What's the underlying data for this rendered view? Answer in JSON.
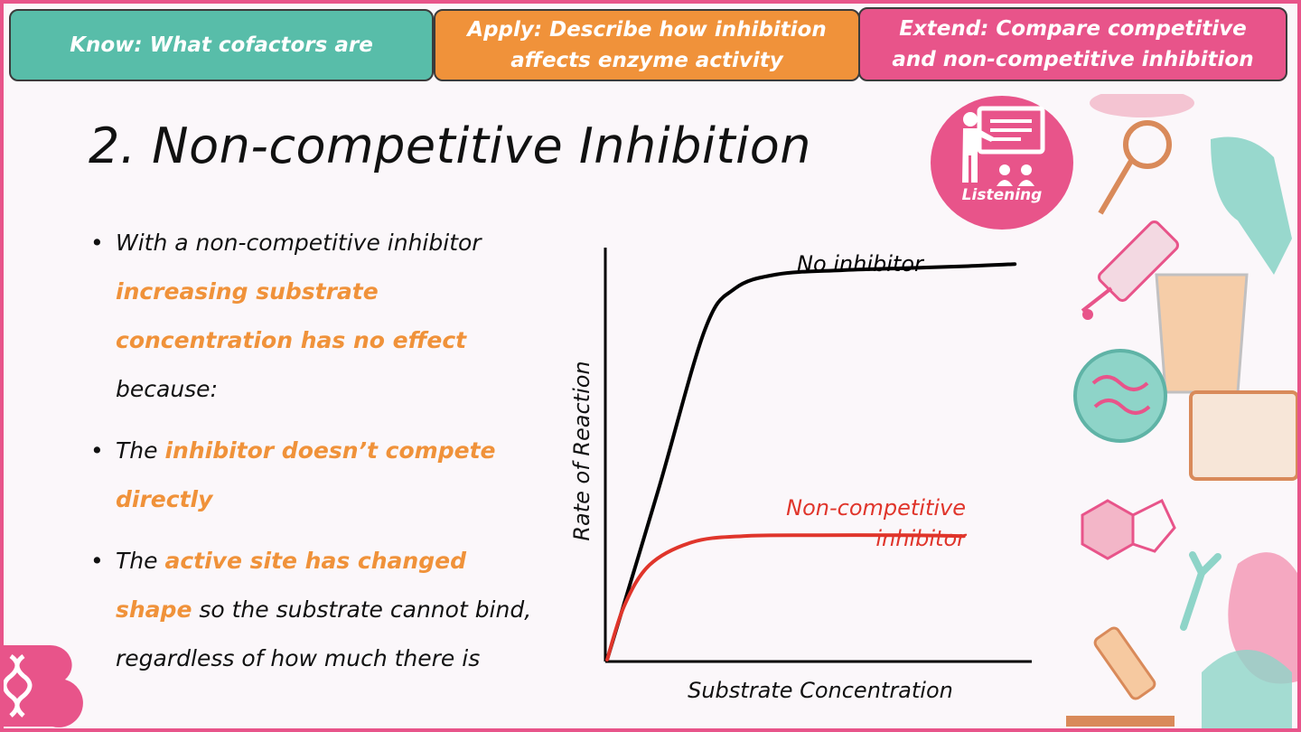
{
  "objectives": {
    "know": "Know: What cofactors are",
    "apply_line1": "Apply: Describe how inhibition",
    "apply_line2": "affects enzyme activity",
    "extend_line1": "Extend: Compare competitive",
    "extend_line2": "and non-competitive inhibition"
  },
  "title": "2. Non-competitive Inhibition",
  "listening_label": "Listening",
  "bullets": {
    "b1_text1": "With a non-competitive inhibitor ",
    "b1_hl": "increasing substrate concentration has no effect",
    "b1_text2": " because:",
    "b2_text1": "The ",
    "b2_hl": "inhibitor doesn’t compete directly",
    "b3_text1": "The ",
    "b3_hl": "active site has changed shape",
    "b3_text2": " so the substrate cannot bind, regardless of how much there is"
  },
  "colors": {
    "accent_pink": "#e8548a",
    "accent_orange": "#f0923a",
    "accent_teal": "#58bda9",
    "inhibitor_curve": "#e0352b",
    "no_inhibitor_curve": "#000000"
  },
  "chart_data": {
    "type": "line",
    "xlabel": "Substrate Concentration",
    "ylabel": "Rate of Reaction",
    "xlim": [
      0,
      10
    ],
    "ylim": [
      0,
      10
    ],
    "series": [
      {
        "name": "No inhibitor",
        "color": "#000000",
        "x": [
          0,
          1.2,
          2.3,
          3.0,
          4.0,
          5.5,
          7.0,
          8.5,
          9.6
        ],
        "y": [
          0,
          4.1,
          8.0,
          9.0,
          9.35,
          9.45,
          9.5,
          9.55,
          9.6
        ]
      },
      {
        "name": "Non-competitive\ninhibitor",
        "color": "#e0352b",
        "x": [
          0,
          0.4,
          1.0,
          2.0,
          3.2,
          5.0,
          7.0,
          8.4
        ],
        "y": [
          0,
          1.3,
          2.3,
          2.85,
          3.0,
          3.02,
          3.02,
          3.0
        ]
      }
    ],
    "grid": false,
    "legend": "inline labels"
  }
}
